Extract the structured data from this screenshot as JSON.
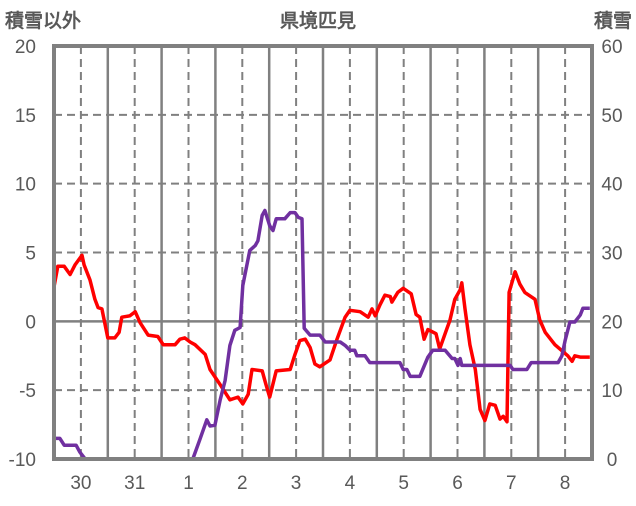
{
  "chart_data": {
    "type": "line",
    "title": "県境匹見",
    "ylabel_left": "積雪以外",
    "ylabel_right": "積雪",
    "x_tick_labels": [
      "30",
      "31",
      "1",
      "2",
      "3",
      "4",
      "5",
      "6",
      "7",
      "8"
    ],
    "x_unit": "days from start of day 30",
    "xlim": [
      0,
      10
    ],
    "ylim_left": [
      -10,
      20
    ],
    "ylim_right": [
      0,
      60
    ],
    "left_ticks": [
      20,
      15,
      10,
      5,
      0,
      -5,
      -10
    ],
    "right_ticks": [
      60,
      50,
      40,
      30,
      20,
      10,
      0
    ],
    "grid": true,
    "colors": {
      "frame": "#808080",
      "temp": "#ff0000",
      "snow": "#7030a0"
    },
    "series": [
      {
        "name": "積雪以外",
        "axis": "left",
        "color": "#ff0000",
        "points": [
          [
            0,
            2.5
          ],
          [
            0.07,
            4.0
          ],
          [
            0.19,
            4.0
          ],
          [
            0.3,
            3.4
          ],
          [
            0.39,
            4.1
          ],
          [
            0.52,
            4.8
          ],
          [
            0.56,
            4.1
          ],
          [
            0.67,
            3.0
          ],
          [
            0.76,
            1.6
          ],
          [
            0.82,
            1.0
          ],
          [
            0.89,
            0.9
          ],
          [
            1.0,
            -1.2
          ],
          [
            1.13,
            -1.2
          ],
          [
            1.21,
            -0.8
          ],
          [
            1.26,
            0.3
          ],
          [
            1.41,
            0.4
          ],
          [
            1.51,
            0.7
          ],
          [
            1.6,
            -0.1
          ],
          [
            1.75,
            -1.0
          ],
          [
            1.93,
            -1.1
          ],
          [
            2.03,
            -1.7
          ],
          [
            2.25,
            -1.7
          ],
          [
            2.34,
            -1.3
          ],
          [
            2.43,
            -1.2
          ],
          [
            2.53,
            -1.5
          ],
          [
            2.62,
            -1.7
          ],
          [
            2.81,
            -2.4
          ],
          [
            2.9,
            -3.5
          ],
          [
            3.09,
            -4.6
          ],
          [
            3.27,
            -5.7
          ],
          [
            3.42,
            -5.5
          ],
          [
            3.51,
            -6.0
          ],
          [
            3.61,
            -5.3
          ],
          [
            3.68,
            -3.5
          ],
          [
            3.87,
            -3.6
          ],
          [
            3.94,
            -4.6
          ],
          [
            4.01,
            -5.5
          ],
          [
            4.13,
            -3.6
          ],
          [
            4.39,
            -3.5
          ],
          [
            4.48,
            -2.4
          ],
          [
            4.57,
            -1.4
          ],
          [
            4.67,
            -1.3
          ],
          [
            4.76,
            -1.9
          ],
          [
            4.85,
            -3.1
          ],
          [
            4.94,
            -3.3
          ],
          [
            5.13,
            -2.8
          ],
          [
            5.26,
            -1.3
          ],
          [
            5.41,
            0.3
          ],
          [
            5.5,
            0.8
          ],
          [
            5.69,
            0.7
          ],
          [
            5.84,
            0.3
          ],
          [
            5.91,
            0.9
          ],
          [
            5.97,
            0.4
          ],
          [
            6.06,
            1.2
          ],
          [
            6.15,
            1.9
          ],
          [
            6.25,
            1.8
          ],
          [
            6.28,
            1.4
          ],
          [
            6.39,
            2.1
          ],
          [
            6.49,
            2.4
          ],
          [
            6.64,
            2.0
          ],
          [
            6.73,
            0.5
          ],
          [
            6.8,
            0.3
          ],
          [
            6.88,
            -1.3
          ],
          [
            6.95,
            -0.6
          ],
          [
            7.1,
            -0.9
          ],
          [
            7.17,
            -2.0
          ],
          [
            7.27,
            -0.9
          ],
          [
            7.36,
            0.1
          ],
          [
            7.45,
            1.6
          ],
          [
            7.55,
            2.3
          ],
          [
            7.58,
            2.8
          ],
          [
            7.64,
            0.9
          ],
          [
            7.73,
            -1.7
          ],
          [
            7.83,
            -3.5
          ],
          [
            7.92,
            -6.4
          ],
          [
            8.01,
            -7.2
          ],
          [
            8.1,
            -6.0
          ],
          [
            8.2,
            -6.1
          ],
          [
            8.29,
            -7.1
          ],
          [
            8.35,
            -6.9
          ],
          [
            8.42,
            -7.3
          ],
          [
            8.46,
            2.1
          ],
          [
            8.57,
            3.6
          ],
          [
            8.66,
            2.7
          ],
          [
            8.75,
            2.1
          ],
          [
            8.94,
            1.6
          ],
          [
            9.03,
            0.1
          ],
          [
            9.13,
            -0.8
          ],
          [
            9.31,
            -1.7
          ],
          [
            9.46,
            -2.2
          ],
          [
            9.55,
            -2.5
          ],
          [
            9.63,
            -2.9
          ],
          [
            9.68,
            -2.5
          ],
          [
            9.78,
            -2.6
          ],
          [
            9.96,
            -2.6
          ]
        ]
      },
      {
        "name": "積雪",
        "axis": "right",
        "color": "#7030a0",
        "points": [
          [
            0,
            3
          ],
          [
            0.11,
            3
          ],
          [
            0.19,
            2
          ],
          [
            0.41,
            2
          ],
          [
            0.48,
            1
          ],
          [
            0.58,
            0
          ],
          [
            2.58,
            0
          ],
          [
            2.71,
            2.8
          ],
          [
            2.84,
            5.7
          ],
          [
            2.9,
            4.8
          ],
          [
            2.99,
            4.9
          ],
          [
            3.09,
            8.6
          ],
          [
            3.18,
            11.4
          ],
          [
            3.27,
            16.5
          ],
          [
            3.36,
            18.7
          ],
          [
            3.46,
            19.1
          ],
          [
            3.51,
            25.2
          ],
          [
            3.64,
            30.3
          ],
          [
            3.74,
            31.0
          ],
          [
            3.79,
            31.7
          ],
          [
            3.87,
            35.4
          ],
          [
            3.92,
            36.1
          ],
          [
            4.01,
            33.9
          ],
          [
            4.07,
            33.2
          ],
          [
            4.13,
            34.9
          ],
          [
            4.29,
            34.9
          ],
          [
            4.39,
            35.8
          ],
          [
            4.48,
            35.8
          ],
          [
            4.54,
            35.1
          ],
          [
            4.61,
            34.9
          ],
          [
            4.65,
            19.0
          ],
          [
            4.76,
            18.0
          ],
          [
            4.94,
            18.0
          ],
          [
            5.04,
            17.0
          ],
          [
            5.32,
            17.0
          ],
          [
            5.41,
            16.5
          ],
          [
            5.5,
            15.8
          ],
          [
            5.59,
            15.8
          ],
          [
            5.63,
            15.0
          ],
          [
            5.78,
            15.0
          ],
          [
            5.87,
            14.0
          ],
          [
            6.43,
            14.0
          ],
          [
            6.49,
            13.0
          ],
          [
            6.56,
            13.0
          ],
          [
            6.62,
            12.0
          ],
          [
            6.8,
            12.0
          ],
          [
            6.95,
            14.8
          ],
          [
            7.04,
            15.8
          ],
          [
            7.27,
            15.8
          ],
          [
            7.4,
            14.6
          ],
          [
            7.45,
            14.6
          ],
          [
            7.51,
            13.6
          ],
          [
            7.55,
            14.6
          ],
          [
            7.58,
            13.6
          ],
          [
            8.48,
            13.6
          ],
          [
            8.53,
            13.0
          ],
          [
            8.79,
            13.0
          ],
          [
            8.87,
            14.0
          ],
          [
            9.37,
            14.0
          ],
          [
            9.44,
            15.0
          ],
          [
            9.5,
            17.2
          ],
          [
            9.59,
            19.9
          ],
          [
            9.68,
            19.9
          ],
          [
            9.78,
            20.9
          ],
          [
            9.83,
            21.9
          ],
          [
            9.96,
            21.9
          ]
        ]
      }
    ]
  }
}
